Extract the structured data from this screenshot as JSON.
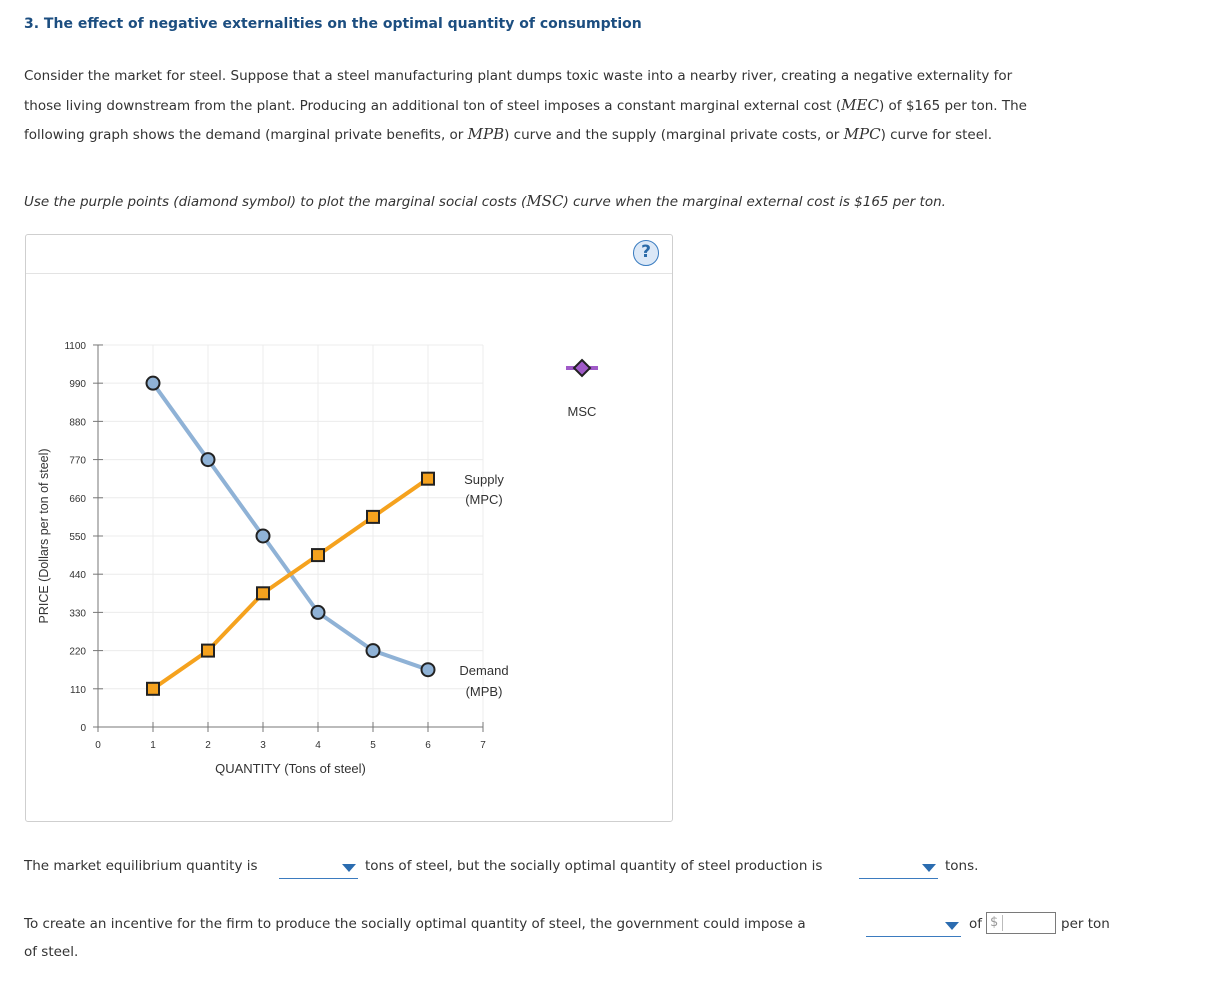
{
  "heading": "3. The effect of negative externalities on the optimal quantity of consumption",
  "intro": {
    "line1": "Consider the market for steel. Suppose that a steel manufacturing plant dumps toxic waste into a nearby river, creating a negative externality for",
    "line2_a": "those living downstream from the plant. Producing an additional ton of steel imposes a constant marginal external cost (",
    "mec": "MEC",
    "line2_b": ") of $165 per ton. The",
    "line3_a": "following graph shows the demand (marginal private benefits, or ",
    "mpb": "MPB",
    "line3_b": ") curve and the supply (marginal private costs, or ",
    "mpc": "MPC",
    "line3_c": ") curve for steel."
  },
  "instruction": {
    "a": "Use the purple points (diamond symbol) to plot the marginal social costs (",
    "msc": "MSC",
    "b": ") curve when the marginal external cost is $165 per ton."
  },
  "help_label": "?",
  "chart_data": {
    "type": "line",
    "xlabel": "QUANTITY (Tons of steel)",
    "ylabel": "PRICE (Dollars per ton of steel)",
    "xlim": [
      0,
      7
    ],
    "ylim": [
      0,
      1100
    ],
    "xticks": [
      0,
      1,
      2,
      3,
      4,
      5,
      6,
      7
    ],
    "yticks": [
      0,
      110,
      220,
      330,
      440,
      550,
      660,
      770,
      880,
      990,
      1100
    ],
    "grid": true,
    "series": [
      {
        "name": "Demand",
        "name2": "(MPB)",
        "color": "#8fb2d6",
        "marker": "circle",
        "x": [
          1,
          2,
          3,
          4,
          5,
          6
        ],
        "y": [
          990,
          770,
          550,
          330,
          220,
          165
        ]
      },
      {
        "name": "Supply",
        "name2": "(MPC)",
        "color": "#f5a21e",
        "marker": "square",
        "x": [
          1,
          2,
          3,
          4,
          5,
          6
        ],
        "y": [
          110,
          220,
          385,
          495,
          605,
          715
        ]
      }
    ],
    "palette_tool": {
      "name": "MSC",
      "color": "#a05ac8",
      "marker": "diamond"
    }
  },
  "questions": {
    "q1_a": "The market equilibrium quantity is",
    "q1_b": "tons of steel, but the socially optimal quantity of steel production is",
    "q1_c": "tons.",
    "q2_a": "To create an incentive for the firm to produce the socially optimal quantity of steel, the government could impose a",
    "q2_of": "of",
    "q2_dollar": "$",
    "q2_per": "per ton",
    "q2_end": "of steel."
  }
}
